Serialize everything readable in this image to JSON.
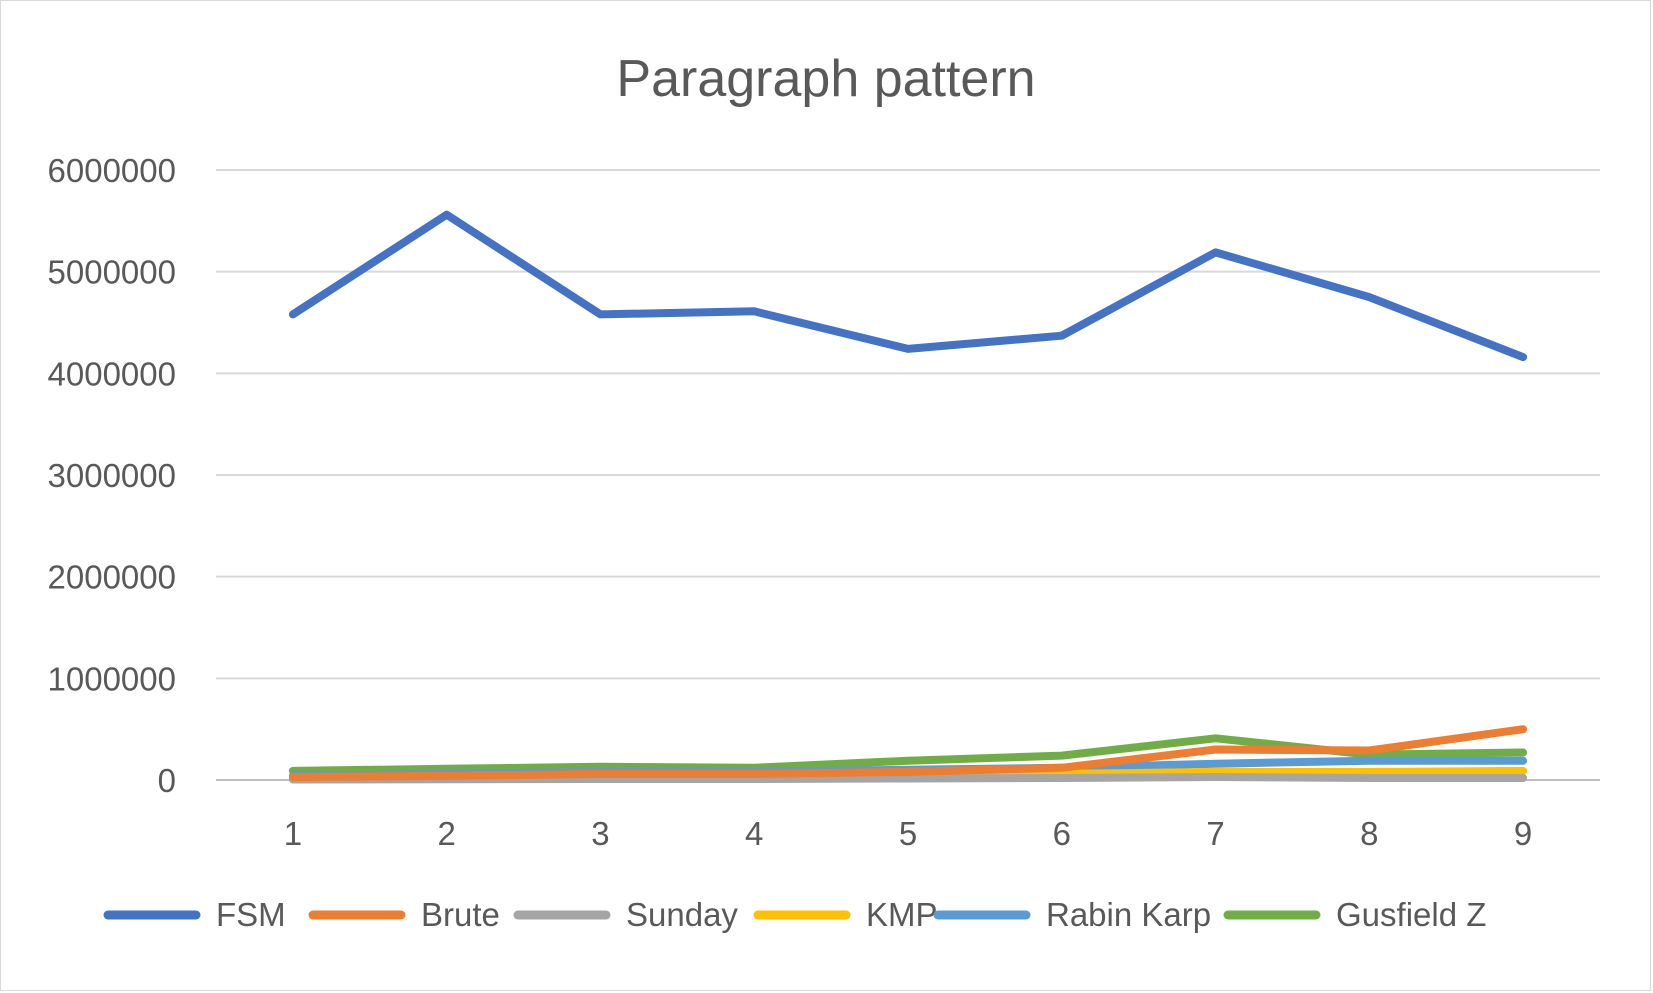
{
  "chart_data": {
    "type": "line",
    "title": "Paragraph pattern",
    "xlabel": "",
    "ylabel": "",
    "categories": [
      "1",
      "2",
      "3",
      "4",
      "5",
      "6",
      "7",
      "8",
      "9"
    ],
    "ylim": [
      0,
      6000000
    ],
    "yticks": [
      "0",
      "1000000",
      "2000000",
      "3000000",
      "4000000",
      "5000000",
      "6000000"
    ],
    "grid": true,
    "legend_position": "bottom",
    "series": [
      {
        "name": "FSM",
        "color": "#4472C4",
        "values": [
          4580000,
          5560000,
          4580000,
          4610000,
          4240000,
          4370000,
          5190000,
          4750000,
          4160000
        ]
      },
      {
        "name": "Brute",
        "color": "#ED7D31",
        "values": [
          30000,
          40000,
          60000,
          60000,
          80000,
          120000,
          300000,
          290000,
          500000
        ]
      },
      {
        "name": "Sunday",
        "color": "#A5A5A5",
        "values": [
          5000,
          8000,
          10000,
          10000,
          15000,
          20000,
          30000,
          20000,
          20000
        ]
      },
      {
        "name": "KMP",
        "color": "#FFC000",
        "values": [
          10000,
          15000,
          30000,
          25000,
          40000,
          60000,
          80000,
          80000,
          90000
        ]
      },
      {
        "name": "Rabin Karp",
        "color": "#5B9BD5",
        "values": [
          40000,
          60000,
          80000,
          80000,
          100000,
          120000,
          160000,
          190000,
          190000
        ]
      },
      {
        "name": "Gusfield Z",
        "color": "#70AD47",
        "values": [
          90000,
          110000,
          130000,
          120000,
          190000,
          240000,
          410000,
          250000,
          270000
        ]
      }
    ]
  }
}
